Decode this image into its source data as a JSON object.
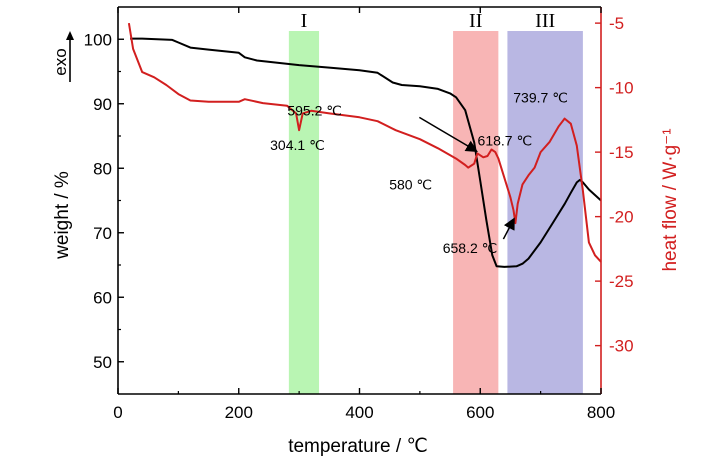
{
  "chart_data": {
    "type": "line",
    "xlabel": "temperature / ℃",
    "ylabel_left": "weight / %",
    "ylabel_right": "heat flow / W·g⁻¹",
    "exo_label": "exo",
    "xlim": [
      0,
      800
    ],
    "ylim_left": [
      45,
      105
    ],
    "ylim_right": [
      -33.75,
      -3.75
    ],
    "x_ticks": [
      0,
      200,
      400,
      600,
      800
    ],
    "y_ticks_left": [
      50,
      60,
      70,
      80,
      90,
      100
    ],
    "y_ticks_right": [
      -5,
      -10,
      -15,
      -20,
      -25,
      -30
    ],
    "regions": [
      {
        "label": "I",
        "x": [
          283,
          333
        ],
        "color": "#b9f5b3"
      },
      {
        "label": "II",
        "x": [
          555,
          630
        ],
        "color": "#f8b5b5"
      },
      {
        "label": "III",
        "x": [
          645,
          770
        ],
        "color": "#b9b7e3"
      }
    ],
    "series": [
      {
        "axis": "left",
        "color": "#000000",
        "x": [
          20,
          40,
          90,
          100,
          120,
          150,
          200,
          210,
          230,
          300,
          350,
          400,
          430,
          455,
          470,
          500,
          530,
          550,
          560,
          575,
          590,
          600,
          610,
          620,
          627,
          640,
          660,
          670,
          680,
          700,
          720,
          740,
          750,
          760,
          765,
          770,
          780,
          800
        ],
        "y": [
          100.1,
          100.1,
          99.9,
          99.5,
          98.7,
          98.4,
          97.9,
          97.2,
          96.7,
          96.0,
          95.6,
          95.2,
          94.8,
          93.3,
          92.9,
          92.7,
          92.3,
          91.6,
          91.0,
          89.0,
          84.0,
          78.0,
          72.0,
          66.5,
          64.8,
          64.7,
          64.8,
          65.2,
          66.0,
          68.5,
          71.5,
          74.5,
          76.2,
          77.8,
          78.2,
          77.8,
          76.7,
          75.0
        ]
      },
      {
        "axis": "right",
        "color": "#d21f1f",
        "x": [
          18,
          25,
          40,
          60,
          80,
          100,
          120,
          150,
          200,
          210,
          240,
          280,
          295,
          300,
          306,
          320,
          350,
          400,
          430,
          460,
          500,
          530,
          560,
          575,
          580,
          590,
          595.2,
          605,
          612,
          618.7,
          625,
          630,
          640,
          650,
          655,
          658.2,
          662,
          670,
          680,
          690,
          700,
          715,
          730,
          739.7,
          750,
          760,
          770,
          780,
          790,
          800
        ],
        "y": [
          -5.0,
          -7.0,
          -8.8,
          -9.2,
          -9.8,
          -10.5,
          -11.0,
          -11.1,
          -11.1,
          -10.9,
          -11.2,
          -11.4,
          -12.0,
          -13.3,
          -12.0,
          -11.8,
          -12.0,
          -12.3,
          -12.6,
          -13.3,
          -14.0,
          -14.7,
          -15.5,
          -16.0,
          -16.2,
          -15.9,
          -15.1,
          -15.4,
          -15.3,
          -14.8,
          -15.0,
          -15.5,
          -17.0,
          -18.5,
          -19.5,
          -20.5,
          -19.0,
          -17.5,
          -16.8,
          -16.2,
          -15.0,
          -14.2,
          -13.0,
          -12.4,
          -12.8,
          -14.5,
          -18.0,
          -22.0,
          -23.0,
          -23.5
        ]
      }
    ],
    "annotations": [
      {
        "text": "304.1 ℃",
        "x": 305,
        "y": -13.3
      },
      {
        "text": "595.2 ℃",
        "x": 595.2,
        "y": -15.1
      },
      {
        "text": "618.7 ℃",
        "x": 618.7,
        "y": -14.8
      },
      {
        "text": "580 ℃",
        "x": 580,
        "y": -16.2
      },
      {
        "text": "739.7 ℃",
        "x": 739.7,
        "y": -12.4
      },
      {
        "text": "658.2 ℃",
        "x": 658.2,
        "y": -20.5
      }
    ]
  }
}
